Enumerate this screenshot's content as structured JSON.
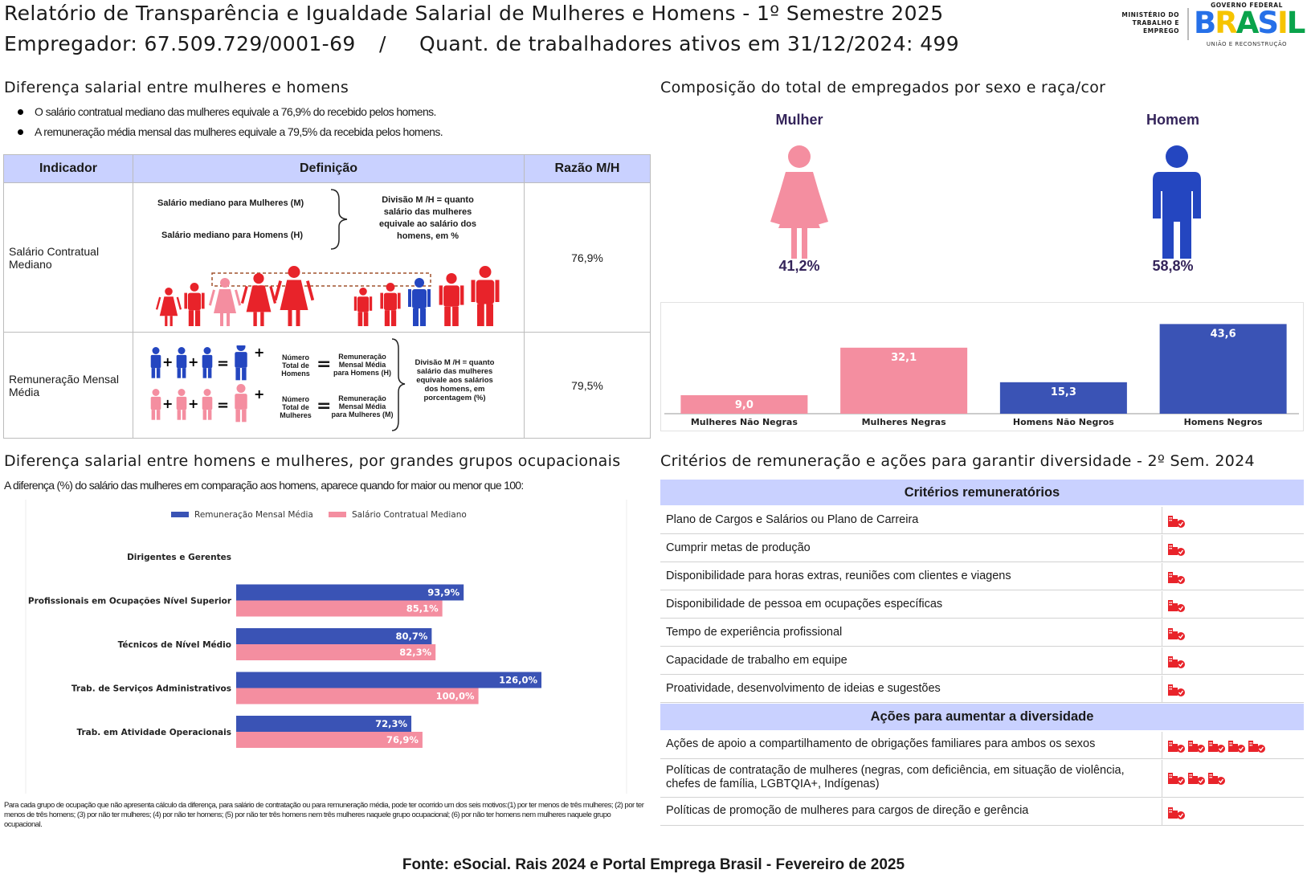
{
  "header": {
    "title": "Relatório de Transparência e Igualdade Salarial de Mulheres e Homens - 1º Semestre 2025",
    "employer": "Empregador: 67.509.729/0001-69",
    "separator": "/",
    "workers": "Quant. de trabalhadores ativos em 31/12/2024: 499",
    "ministry_logo": "MINISTÉRIO DO TRABALHO E EMPREGO",
    "gov_logo_top": "GOVERNO FEDERAL",
    "gov_logo_brasil": "BRASIL",
    "gov_logo_bottom": "UNIÃO E RECONSTRUÇÃO"
  },
  "salary_diff": {
    "title": "Diferença salarial entre mulheres e homens",
    "bullets": [
      "O salário contratual mediano das mulheres equivale a 76,9% do recebido pelos homens.",
      "A remuneração média mensal das mulheres equivale a 79,5% da recebida pelos homens."
    ],
    "table": {
      "headers": [
        "Indicador",
        "Definição",
        "Razão M/H"
      ],
      "row1": {
        "indicator": "Salário Contratual Mediano",
        "def_women": "Salário mediano para Mulheres (M)",
        "def_men": "Salário mediano para Homens (H)",
        "def_division": "Divisão M /H = quanto salário das mulheres equivale ao salário dos homens, em %",
        "ratio": "76,9%"
      },
      "row2": {
        "indicator": "Remuneração Mensal Média",
        "total_men": "Número Total de Homens",
        "total_women": "Número Total de Mulheres",
        "avg_men": "Remuneração Mensal Média para Homens (H)",
        "avg_women": "Remuneração Mensal Média para Mulheres (M)",
        "def_division": "Divisão M /H = quanto salário das mulheres equivale aos salários dos homens, em porcentagem (%)",
        "ratio": "79,5%"
      }
    }
  },
  "composition": {
    "title": "Composição do total de empregados por sexo e raça/cor",
    "women_label": "Mulher",
    "women_pct": "41,2%",
    "men_label": "Homem",
    "men_pct": "58,8%",
    "colors": {
      "women": "#f48ea0",
      "men": "#2446c0"
    }
  },
  "occupational": {
    "title": "Diferença salarial entre homens e mulheres, por grandes grupos ocupacionais",
    "subtitle": "A diferença (%) do salário das mulheres em comparação aos homens, aparece quando for maior ou menor que 100:",
    "note": "Para cada grupo de ocupação que não apresenta cálculo da diferença, para salário de contratação ou para remuneração média, pode ter ocorrido um dos seis motivos:(1) por ter menos de três mulheres; (2) por ter menos de três homens; (3) por não ter mulheres; (4) por não ter homens; (5) por não ter três homens nem três mulheres naquele grupo ocupacional; (6) por não ter homens nem mulheres naquele grupo ocupacional."
  },
  "criteria": {
    "title": "Critérios de remuneração e ações para garantir diversidade - 2º Sem. 2024",
    "head1": "Critérios remuneratórios",
    "items": [
      {
        "label": "Plano de Cargos e Salários ou Plano de Carreira",
        "icons": 1
      },
      {
        "label": "Cumprir metas de produção",
        "icons": 1
      },
      {
        "label": "Disponibilidade para horas extras, reuniões com clientes e viagens",
        "icons": 1
      },
      {
        "label": "Disponibilidade de pessoa em ocupações específicas",
        "icons": 1
      },
      {
        "label": "Tempo de experiência profissional",
        "icons": 1
      },
      {
        "label": "Capacidade de trabalho em equipe",
        "icons": 1
      },
      {
        "label": "Proatividade, desenvolvimento de ideias e sugestões",
        "icons": 1
      }
    ],
    "head2": "Ações para aumentar a diversidade",
    "actions": [
      {
        "label": "Ações de apoio a compartilhamento de obrigações familiares para ambos os sexos",
        "icons": 5
      },
      {
        "label": "Políticas de contratação de mulheres (negras, com deficiência, em situação de violência,",
        "label2": "chefes de família, LGBTQIA+, Indígenas)",
        "icons": 3
      },
      {
        "label": "Políticas de promoção de mulheres para cargos de direção e gerência",
        "icons": 1
      }
    ],
    "icon_name": "building-check-icon",
    "icon_color": "#e8232a"
  },
  "footer": {
    "source": "Fonte: eSocial. Rais 2024 e Portal Emprega Brasil - Fevereiro de 2025"
  },
  "chart_data": [
    {
      "type": "bar",
      "categories": [
        "Mulheres Não Negras",
        "Mulheres Negras",
        "Homens Não Negros",
        "Homens Negros"
      ],
      "values": [
        9.0,
        32.1,
        15.3,
        43.6
      ],
      "value_labels": [
        "9,0",
        "32,1",
        "15,3",
        "43,6"
      ],
      "colors": [
        "#f48ea0",
        "#f48ea0",
        "#3a53b5",
        "#3a53b5"
      ],
      "ylim": [
        0,
        45
      ]
    },
    {
      "type": "bar",
      "orientation": "horizontal",
      "categories": [
        "Dirigentes e Gerentes",
        "Profissionais em Ocupações Nível Superior",
        "Técnicos de Nível Médio",
        "Trab. de Serviços Administrativos",
        "Trab. em Atividade Operacionais"
      ],
      "series": [
        {
          "name": "Remuneração Mensal Média",
          "color": "#3a53b5",
          "values": [
            null,
            93.9,
            80.7,
            126.0,
            72.3
          ],
          "labels": [
            "",
            "93,9%",
            "80,7%",
            "126,0%",
            "72,3%"
          ]
        },
        {
          "name": "Salário Contratual Mediano",
          "color": "#f48ea0",
          "values": [
            null,
            85.1,
            82.3,
            100.0,
            76.9
          ],
          "labels": [
            "",
            "85,1%",
            "82,3%",
            "100,0%",
            "76,9%"
          ]
        }
      ],
      "xlim": [
        0,
        140
      ],
      "legend": "top"
    }
  ]
}
